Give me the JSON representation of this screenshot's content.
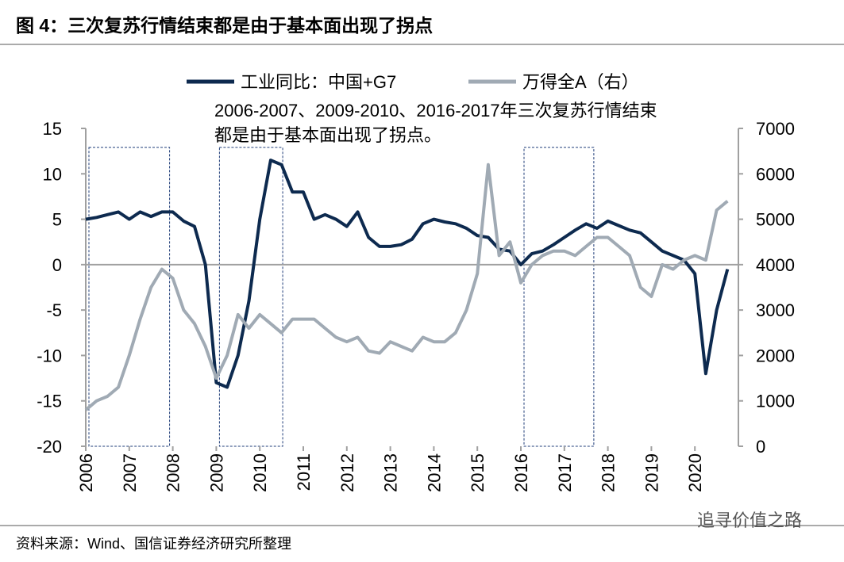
{
  "chart_data": {
    "type": "line",
    "title": "图 4：三次复苏行情结束都是由于基本面出现了拐点",
    "annotation": "2006-2007、2009-2010、2016-2017年三次复苏行情结束都是由于基本面出现了拐点。",
    "source": "资料来源：Wind、国信证券经济研究所整理",
    "watermark": "追寻价值之路",
    "x": [
      2006,
      2006.25,
      2006.5,
      2006.75,
      2007,
      2007.25,
      2007.5,
      2007.75,
      2008,
      2008.25,
      2008.5,
      2008.75,
      2009,
      2009.25,
      2009.5,
      2009.75,
      2010,
      2010.25,
      2010.5,
      2010.75,
      2011,
      2011.25,
      2011.5,
      2011.75,
      2012,
      2012.25,
      2012.5,
      2012.75,
      2013,
      2013.25,
      2013.5,
      2013.75,
      2014,
      2014.25,
      2014.5,
      2014.75,
      2015,
      2015.25,
      2015.5,
      2015.75,
      2016,
      2016.25,
      2016.5,
      2016.75,
      2017,
      2017.25,
      2017.5,
      2017.75,
      2018,
      2018.25,
      2018.5,
      2018.75,
      2019,
      2019.25,
      2019.5,
      2019.75,
      2020,
      2020.25,
      2020.5,
      2020.75
    ],
    "xlim": [
      2006,
      2021
    ],
    "xticks": [
      2006,
      2007,
      2008,
      2009,
      2010,
      2011,
      2012,
      2013,
      2014,
      2015,
      2016,
      2017,
      2018,
      2019,
      2020
    ],
    "ylim": [
      -20,
      15
    ],
    "yticks": [
      -20,
      -15,
      -10,
      -5,
      0,
      5,
      10,
      15
    ],
    "y2lim": [
      0,
      7000
    ],
    "y2ticks": [
      0,
      1000,
      2000,
      3000,
      4000,
      5000,
      6000,
      7000
    ],
    "highlights": [
      [
        2006,
        2008
      ],
      [
        2009,
        2010.6
      ],
      [
        2016,
        2017.75
      ]
    ],
    "series": [
      {
        "name": "工业同比：中国+G7",
        "color": "#0d2a4f",
        "values": [
          5,
          5.2,
          5.5,
          5.8,
          5,
          5.8,
          5.3,
          5.8,
          5.8,
          4.8,
          4.2,
          0,
          -13,
          -13.5,
          -10,
          -4,
          5,
          11.5,
          11,
          8,
          8,
          5,
          5.5,
          5,
          4.2,
          5.8,
          3,
          2,
          2,
          2.2,
          2.8,
          4.5,
          5,
          4.7,
          4.5,
          4,
          3.2,
          3,
          1.7,
          1.5,
          0,
          1.2,
          1.5,
          2.2,
          3,
          3.8,
          4.5,
          4,
          4.8,
          4.3,
          3.8,
          3.5,
          2.5,
          1.5,
          1,
          0.5,
          -1,
          -12,
          -5,
          -0.5
        ]
      },
      {
        "name": "万得全A（右）",
        "color": "#a0aab4",
        "axis": "y2",
        "values": [
          800,
          1000,
          1100,
          1300,
          2000,
          2800,
          3500,
          3900,
          3700,
          3000,
          2700,
          2200,
          1500,
          2000,
          2900,
          2600,
          2900,
          2700,
          2500,
          2800,
          2800,
          2800,
          2600,
          2400,
          2300,
          2400,
          2100,
          2050,
          2300,
          2200,
          2100,
          2400,
          2300,
          2300,
          2500,
          3000,
          3800,
          6200,
          4200,
          4500,
          3600,
          4000,
          4200,
          4300,
          4300,
          4200,
          4400,
          4600,
          4600,
          4400,
          4200,
          3500,
          3300,
          4000,
          3900,
          4100,
          4200,
          4100,
          5200,
          5400
        ]
      }
    ]
  }
}
